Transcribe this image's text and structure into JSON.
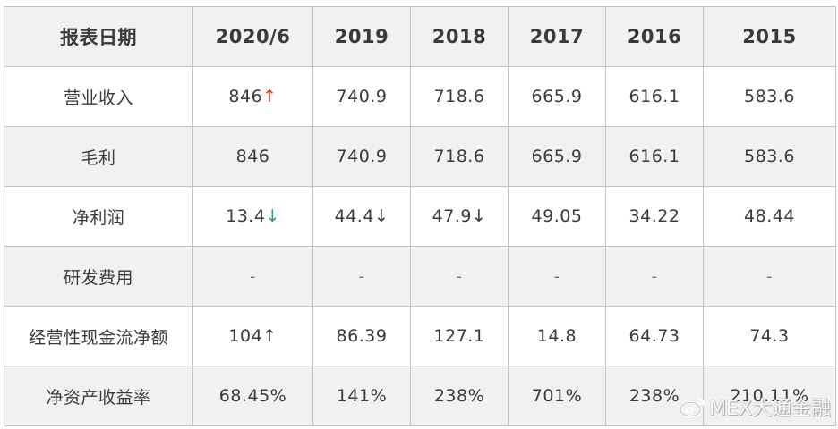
{
  "table": {
    "headers": [
      "报表日期",
      "2020/6",
      "2019",
      "2018",
      "2017",
      "2016",
      "2015"
    ],
    "rows": [
      {
        "label": "营业收入",
        "cells": [
          {
            "value": "846",
            "arrow": "↑",
            "arrow_style": "up-red"
          },
          {
            "value": "740.9"
          },
          {
            "value": "718.6"
          },
          {
            "value": "665.9"
          },
          {
            "value": "616.1"
          },
          {
            "value": "583.6"
          }
        ]
      },
      {
        "label": "毛利",
        "cells": [
          {
            "value": "846"
          },
          {
            "value": "740.9"
          },
          {
            "value": "718.6"
          },
          {
            "value": "665.9"
          },
          {
            "value": "616.1"
          },
          {
            "value": "583.6"
          }
        ]
      },
      {
        "label": "净利润",
        "cells": [
          {
            "value": "13.4",
            "arrow": "↓",
            "arrow_style": "down-green"
          },
          {
            "value": "44.4",
            "arrow": "↓",
            "arrow_style": "arrow-plain"
          },
          {
            "value": "47.9",
            "arrow": "↓",
            "arrow_style": "arrow-plain"
          },
          {
            "value": "49.05"
          },
          {
            "value": "34.22"
          },
          {
            "value": "48.44"
          }
        ]
      },
      {
        "label": "研发费用",
        "cells": [
          {
            "value": "-"
          },
          {
            "value": "-"
          },
          {
            "value": "-"
          },
          {
            "value": "-"
          },
          {
            "value": "-"
          },
          {
            "value": "-"
          }
        ]
      },
      {
        "label": "经营性现金流净额",
        "cells": [
          {
            "value": "104",
            "arrow": "↑",
            "arrow_style": "arrow-plain"
          },
          {
            "value": "86.39"
          },
          {
            "value": "127.1"
          },
          {
            "value": "14.8"
          },
          {
            "value": "64.73"
          },
          {
            "value": "74.3"
          }
        ]
      },
      {
        "label": "净资产收益率",
        "cells": [
          {
            "value": "68.45%"
          },
          {
            "value": "141%"
          },
          {
            "value": "238%"
          },
          {
            "value": "701%"
          },
          {
            "value": "238%"
          },
          {
            "value": "210.11%"
          }
        ]
      }
    ]
  },
  "watermark": {
    "text": "MEX大通金融",
    "icon": "weibo-icon"
  },
  "colors": {
    "up_red": "#e83a2a",
    "down_green": "#2aa57a",
    "header_bg": "#f1f1f1",
    "border": "#c4c4c4",
    "text": "#3a3a3a"
  }
}
